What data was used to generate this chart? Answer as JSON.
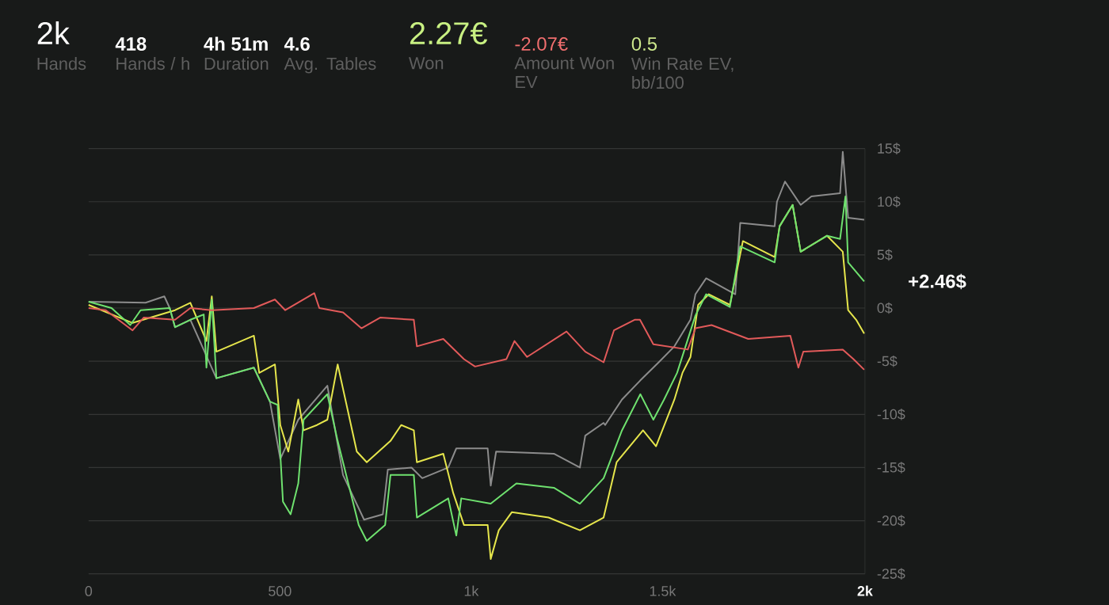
{
  "chart_data": {
    "type": "line",
    "annotations": [
      "2k",
      "Hands",
      "418",
      "Hands / h",
      "4h 51m",
      "Duration",
      "4.6",
      "Avg. Tables",
      "2.27€",
      "Won",
      "-2.07€",
      "Amount Won EV",
      "0.5",
      "Win Rate EV, bb/100",
      {
        "text": "+2.46$",
        "x": 2029,
        "y": 2.5
      }
    ],
    "xlim": [
      0,
      2029
    ],
    "xticks": [
      0,
      500,
      {
        "value": 1000,
        "label": "1k"
      },
      {
        "value": 1500,
        "label": "1.5k"
      },
      {
        "value": 2029,
        "label": "2k"
      }
    ],
    "ylim": [
      -25,
      15
    ],
    "yticks": [
      {
        "value": -25,
        "label": "-25$"
      },
      {
        "value": -20,
        "label": "-20$"
      },
      {
        "value": -15,
        "label": "-15$"
      },
      {
        "value": -10,
        "label": "-10$"
      },
      {
        "value": -5,
        "label": "-5$"
      },
      {
        "value": 0,
        "label": "0$"
      },
      {
        "value": 5,
        "label": "5$"
      },
      {
        "value": 10,
        "label": "10$"
      },
      {
        "value": 15,
        "label": "15$"
      }
    ],
    "grid": "y",
    "series": [
      {
        "color": "#8c8c8c",
        "x": [
          0,
          149,
          198,
          212,
          226,
          266,
          334,
          432,
          474,
          501,
          548,
          624,
          665,
          720,
          769,
          782,
          844,
          872,
          940,
          961,
          1043,
          1051,
          1065,
          1216,
          1284,
          1298,
          1346,
          1350,
          1394,
          1442,
          1490,
          1531,
          1573,
          1586,
          1614,
          1690,
          1703,
          1793,
          1799,
          1820,
          1861,
          1889,
          1964,
          1971,
          1985,
          2027
        ],
        "values": [
          0.6,
          0.5,
          1.1,
          0,
          -1.8,
          -1.1,
          -6.6,
          -5.6,
          -8.8,
          -14.2,
          -10.5,
          -7.3,
          -15.7,
          -19.9,
          -19.4,
          -15.2,
          -15.0,
          -16.0,
          -15.0,
          -13.2,
          -13.2,
          -16.7,
          -13.5,
          -13.7,
          -15.0,
          -12.0,
          -10.8,
          -11.0,
          -8.6,
          -6.8,
          -5.1,
          -3.6,
          -1.1,
          1.3,
          2.8,
          1.3,
          8.0,
          7.7,
          10.0,
          11.9,
          9.7,
          10.5,
          10.8,
          14.7,
          8.5,
          8.3
        ]
      },
      {
        "color": "#e6e64c",
        "x": [
          0,
          115,
          226,
          266,
          308,
          322,
          334,
          432,
          446,
          487,
          501,
          522,
          548,
          562,
          597,
          624,
          651,
          701,
          727,
          789,
          817,
          850,
          858,
          927,
          953,
          981,
          1043,
          1051,
          1072,
          1106,
          1202,
          1284,
          1346,
          1380,
          1449,
          1483,
          1531,
          1552,
          1573,
          1593,
          1621,
          1676,
          1710,
          1793,
          1806,
          1840,
          1861,
          1930,
          1971,
          1985,
          2006,
          2027
        ],
        "values": [
          0.3,
          -1.4,
          -0.2,
          0.5,
          -3.1,
          1.1,
          -4.1,
          -2.6,
          -6.1,
          -5.3,
          -11.0,
          -13.5,
          -8.6,
          -11.5,
          -11.0,
          -10.5,
          -5.3,
          -13.5,
          -14.5,
          -12.5,
          -11.0,
          -11.5,
          -14.5,
          -13.7,
          -17.4,
          -20.4,
          -20.4,
          -23.6,
          -20.9,
          -19.2,
          -19.7,
          -20.9,
          -19.7,
          -14.5,
          -11.5,
          -13.0,
          -8.6,
          -6.1,
          -4.6,
          0.3,
          1.3,
          0.3,
          6.3,
          4.8,
          7.7,
          9.7,
          5.3,
          6.8,
          5.3,
          -0.2,
          -1.1,
          -2.4
        ]
      },
      {
        "color": "#6fe26f",
        "x": [
          0,
          60,
          109,
          136,
          212,
          226,
          266,
          301,
          308,
          322,
          334,
          432,
          474,
          494,
          508,
          528,
          548,
          562,
          624,
          651,
          706,
          727,
          775,
          789,
          850,
          858,
          940,
          961,
          974,
          1051,
          1118,
          1216,
          1284,
          1346,
          1394,
          1442,
          1476,
          1504,
          1538,
          1586,
          1614,
          1676,
          1703,
          1793,
          1806,
          1840,
          1861,
          1930,
          1964,
          1978,
          1985,
          2027
        ],
        "values": [
          0.6,
          0,
          -1.6,
          -0.2,
          0,
          -1.8,
          -1.1,
          -0.6,
          -5.6,
          0.8,
          -6.6,
          -5.6,
          -8.8,
          -9.1,
          -18.2,
          -19.4,
          -16.5,
          -10.5,
          -8.1,
          -12.5,
          -20.4,
          -21.9,
          -20.4,
          -15.7,
          -15.7,
          -19.7,
          -17.9,
          -21.4,
          -17.9,
          -18.4,
          -16.5,
          -16.9,
          -18.4,
          -16.0,
          -11.5,
          -8.1,
          -10.5,
          -8.6,
          -6.1,
          -0.7,
          1.3,
          0.1,
          5.8,
          4.3,
          7.7,
          9.7,
          5.3,
          6.8,
          6.5,
          10.5,
          4.3,
          2.5
        ]
      },
      {
        "color": "#e25a5a",
        "x": [
          0,
          45,
          115,
          144,
          226,
          266,
          322,
          432,
          487,
          514,
          590,
          603,
          665,
          713,
          762,
          850,
          858,
          927,
          981,
          1010,
          1092,
          1113,
          1146,
          1249,
          1298,
          1346,
          1373,
          1427,
          1441,
          1476,
          1566,
          1586,
          1628,
          1724,
          1834,
          1855,
          1868,
          1971,
          1999,
          2027
        ],
        "values": [
          0,
          -0.2,
          -2.1,
          -0.9,
          -1.1,
          0,
          -0.2,
          0,
          0.8,
          -0.2,
          1.4,
          0,
          -0.4,
          -1.9,
          -0.9,
          -1.1,
          -3.6,
          -2.9,
          -4.8,
          -5.5,
          -4.8,
          -3.1,
          -4.6,
          -2.2,
          -4.1,
          -5.1,
          -2.1,
          -1.1,
          -1.1,
          -3.4,
          -3.9,
          -1.9,
          -1.6,
          -2.9,
          -2.6,
          -5.6,
          -4.1,
          -3.9,
          -4.8,
          -5.8
        ]
      }
    ]
  }
}
